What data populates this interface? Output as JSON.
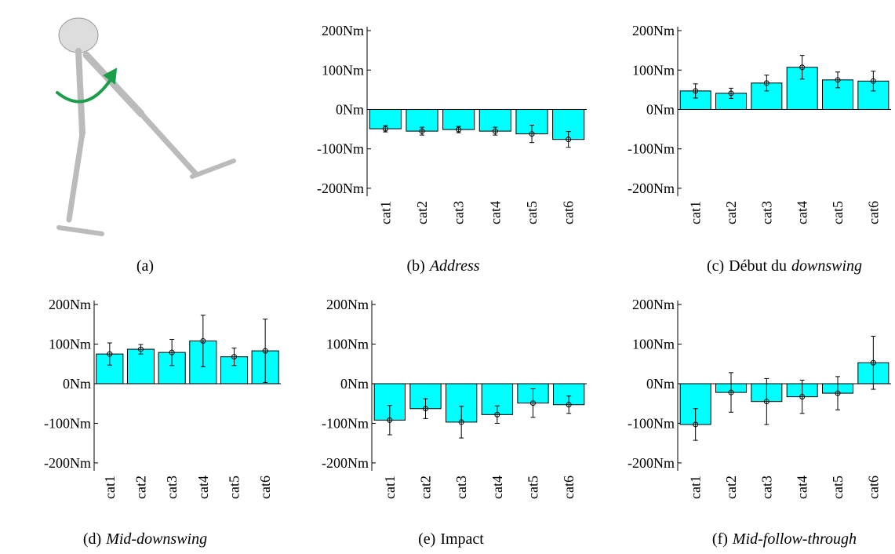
{
  "figure": {
    "panel_a_caption": "(a)"
  },
  "chart_data": [
    {
      "type": "bar",
      "caption": {
        "label": "(b)",
        "emphasis": "Address"
      },
      "categories": [
        "cat1",
        "cat2",
        "cat3",
        "cat4",
        "cat5",
        "cat6"
      ],
      "values": [
        -49,
        -55,
        -51,
        -55,
        -62,
        -76
      ],
      "errors": [
        8,
        10,
        8,
        10,
        22,
        20
      ],
      "color": "#00ffff",
      "ylim": [
        -220,
        210
      ],
      "yticks": [
        {
          "value": -200,
          "label": "-200Nm"
        },
        {
          "value": -100,
          "label": "-100Nm"
        },
        {
          "value": 0,
          "label": "0Nm"
        },
        {
          "value": 100,
          "label": "100Nm"
        },
        {
          "value": 200,
          "label": "200Nm"
        }
      ],
      "grid": false
    },
    {
      "type": "bar",
      "caption": {
        "label": "(c)",
        "text": "Début du",
        "emphasis": "downswing"
      },
      "categories": [
        "cat1",
        "cat2",
        "cat3",
        "cat4",
        "cat5",
        "cat6"
      ],
      "values": [
        47,
        41,
        67,
        107,
        75,
        72
      ],
      "errors": [
        18,
        13,
        20,
        30,
        20,
        25
      ],
      "color": "#00ffff",
      "ylim": [
        -220,
        210
      ],
      "yticks": [
        {
          "value": -200,
          "label": "-200Nm"
        },
        {
          "value": -100,
          "label": "-100Nm"
        },
        {
          "value": 0,
          "label": "0Nm"
        },
        {
          "value": 100,
          "label": "100Nm"
        },
        {
          "value": 200,
          "label": "200Nm"
        }
      ],
      "grid": false
    },
    {
      "type": "bar",
      "caption": {
        "label": "(d)",
        "emphasis": "Mid-downswing"
      },
      "categories": [
        "cat1",
        "cat2",
        "cat3",
        "cat4",
        "cat5",
        "cat6"
      ],
      "values": [
        75,
        87,
        79,
        108,
        68,
        83
      ],
      "errors": [
        28,
        12,
        33,
        65,
        22,
        80
      ],
      "color": "#00ffff",
      "ylim": [
        -220,
        210
      ],
      "yticks": [
        {
          "value": -200,
          "label": "-200Nm"
        },
        {
          "value": -100,
          "label": "-100Nm"
        },
        {
          "value": 0,
          "label": "0Nm"
        },
        {
          "value": 100,
          "label": "100Nm"
        },
        {
          "value": 200,
          "label": "200Nm"
        }
      ],
      "grid": false
    },
    {
      "type": "bar",
      "caption": {
        "label": "(e)",
        "text": "Impact"
      },
      "categories": [
        "cat1",
        "cat2",
        "cat3",
        "cat4",
        "cat5",
        "cat6"
      ],
      "values": [
        -92,
        -63,
        -97,
        -78,
        -49,
        -53
      ],
      "errors": [
        37,
        25,
        40,
        22,
        36,
        22
      ],
      "color": "#00ffff",
      "ylim": [
        -220,
        210
      ],
      "yticks": [
        {
          "value": -200,
          "label": "-200Nm"
        },
        {
          "value": -100,
          "label": "-100Nm"
        },
        {
          "value": 0,
          "label": "0Nm"
        },
        {
          "value": 100,
          "label": "100Nm"
        },
        {
          "value": 200,
          "label": "200Nm"
        }
      ],
      "grid": false
    },
    {
      "type": "bar",
      "caption": {
        "label": "(f)",
        "emphasis": "Mid-follow-through"
      },
      "categories": [
        "cat1",
        "cat2",
        "cat3",
        "cat4",
        "cat5",
        "cat6"
      ],
      "values": [
        -103,
        -22,
        -45,
        -33,
        -24,
        53
      ],
      "errors": [
        40,
        50,
        58,
        42,
        42,
        67
      ],
      "color": "#00ffff",
      "ylim": [
        -220,
        210
      ],
      "yticks": [
        {
          "value": -200,
          "label": "-200Nm"
        },
        {
          "value": -100,
          "label": "-100Nm"
        },
        {
          "value": 0,
          "label": "0Nm"
        },
        {
          "value": 100,
          "label": "100Nm"
        },
        {
          "value": 200,
          "label": "200Nm"
        }
      ],
      "grid": false
    }
  ]
}
